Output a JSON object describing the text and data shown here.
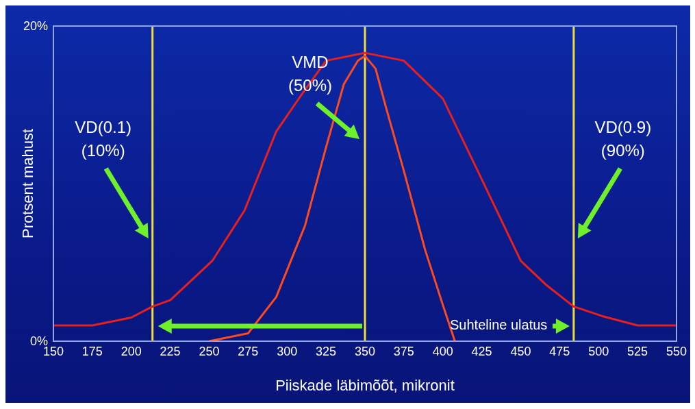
{
  "chart_data": {
    "type": "line",
    "xlabel": "Piiskade läbimõõt, mikronit",
    "ylabel": "Protsent mahust",
    "xlim": [
      150,
      550
    ],
    "xticks": [
      150,
      175,
      200,
      225,
      250,
      275,
      300,
      325,
      350,
      375,
      400,
      425,
      450,
      475,
      500,
      525,
      550
    ],
    "ylim": [
      0,
      20
    ],
    "yticks": [
      {
        "value": 0,
        "label": "0%"
      },
      {
        "value": 20,
        "label": "20%"
      }
    ],
    "grid": false,
    "legend": false,
    "marker": "none",
    "line_style": "solid",
    "series": [
      {
        "color": "#e8201c",
        "x": [
          150,
          175,
          200,
          213.6,
          225,
          252,
          272.7,
          293,
          309,
          325,
          350,
          375,
          400,
          420,
          450,
          466,
          484,
          502,
          525,
          550
        ],
        "values": [
          1.0,
          1.0,
          1.5,
          2.2,
          2.6,
          5.1,
          8.3,
          13.3,
          15.6,
          17.8,
          18.3,
          17.8,
          15.4,
          11.3,
          5.1,
          3.6,
          2.2,
          1.6,
          1.0,
          1.0
        ]
      },
      {
        "color": "#ff4a1c",
        "x": [
          250,
          275,
          293,
          311.4,
          325,
          336.4,
          345.5,
          350,
          356.8,
          363.6,
          375,
          388.6,
          400,
          407.7
        ],
        "values": [
          0,
          0.5,
          2.8,
          7.3,
          12.3,
          16.3,
          17.8,
          18.1,
          17.3,
          14.8,
          10.8,
          5.8,
          2.3,
          0
        ]
      }
    ],
    "ref_lines": [
      {
        "axis": "x",
        "value": 213.6,
        "color": "#f0dc3c",
        "label": "VD(0.1)\n(10%)"
      },
      {
        "axis": "x",
        "value": 350,
        "color": "#f0dc3c",
        "label": "VMD\n(50%)"
      },
      {
        "axis": "x",
        "value": 484,
        "color": "#f0dc3c",
        "label": "VD(0.9)\n(90%)"
      }
    ],
    "annotations": [
      "Suhteline ulatus"
    ]
  }
}
